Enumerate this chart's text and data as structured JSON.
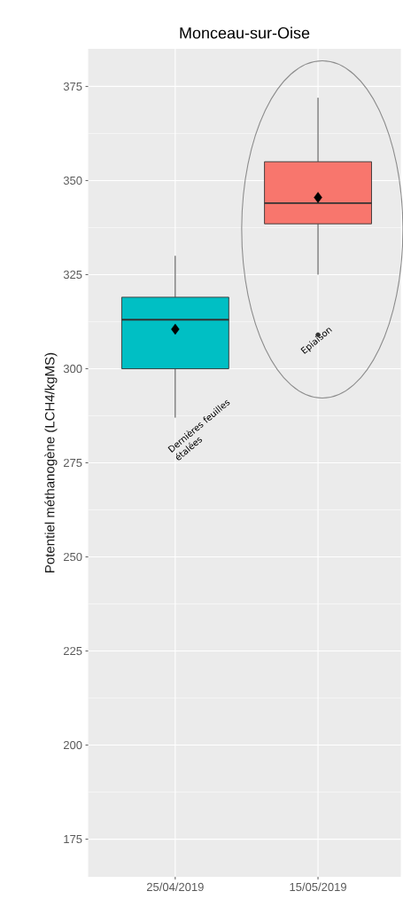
{
  "chart_data": {
    "type": "box",
    "title": "Monceau-sur-Oise",
    "ylabel": "Potentiel méthanogène (LCH4/kgMS)",
    "categories": [
      "25/04/2019",
      "15/05/2019"
    ],
    "colors": [
      "#00bfc4",
      "#f8766d"
    ],
    "boxes": [
      {
        "low": 287,
        "q1": 300,
        "median": 313,
        "q3": 319,
        "high": 330,
        "mean": 310.5
      },
      {
        "low": 325,
        "q1": 338.5,
        "median": 344,
        "q3": 355,
        "high": 372,
        "mean": 345.5,
        "outliers": [
          309
        ]
      }
    ],
    "ylim": [
      165,
      385
    ],
    "yticks": [
      175,
      200,
      225,
      250,
      275,
      300,
      325,
      350,
      375
    ],
    "grid": true,
    "annotations": [
      "Dernières feuilles étalées",
      "Epiaison"
    ]
  }
}
